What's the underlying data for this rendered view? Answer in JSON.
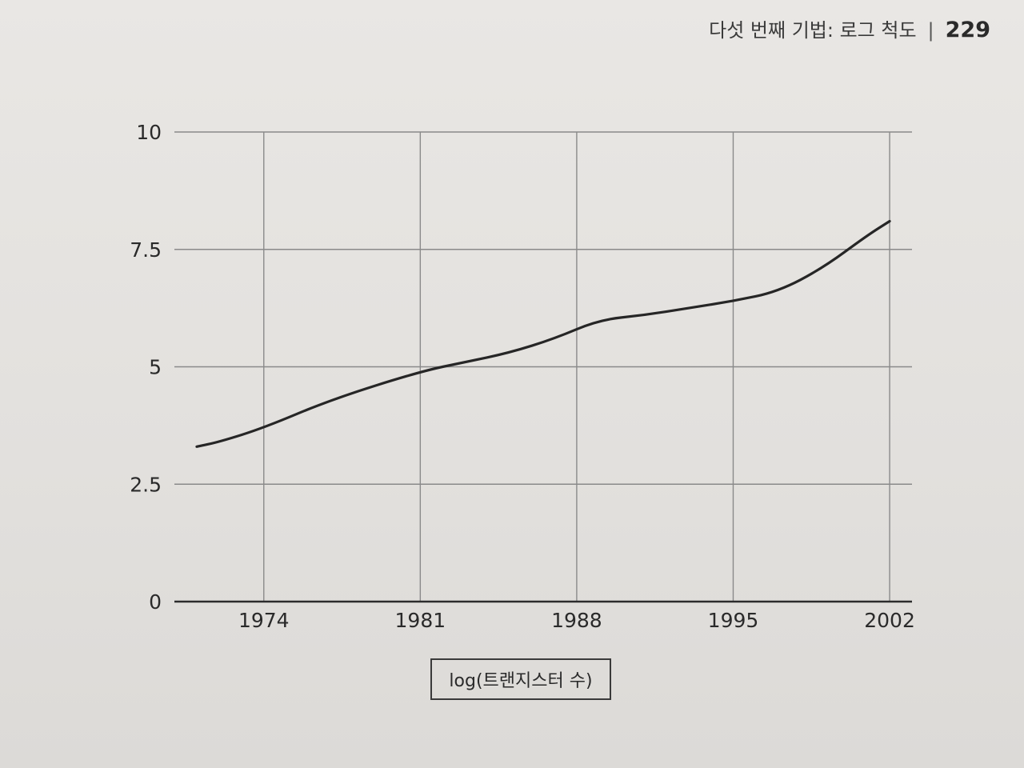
{
  "header": {
    "chapter_title": "다섯 번째 기법: 로그 척도",
    "separator": "|",
    "page_number": "229"
  },
  "chart_data": {
    "type": "line",
    "title": "",
    "xlabel": "",
    "ylabel": "",
    "legend": "log(트랜지스터 수)",
    "legend_placement": "bottom-center",
    "grid": true,
    "xlim": [
      1970,
      2003
    ],
    "ylim": [
      0,
      10
    ],
    "x_ticks": [
      1974,
      1981,
      1988,
      1995,
      2002
    ],
    "x_tick_labels": [
      "1974",
      "1981",
      "1988",
      "1995",
      "2002"
    ],
    "y_ticks": [
      0,
      2.5,
      5,
      7.5,
      10
    ],
    "y_tick_labels": [
      "0",
      "2.5",
      "5",
      "7.5",
      "10"
    ],
    "series": [
      {
        "name": "log(트랜지스터 수)",
        "x": [
          1971,
          1972,
          1974,
          1977,
          1981,
          1983,
          1985,
          1987,
          1989,
          1991,
          1993,
          1995,
          1997,
          1999,
          2001,
          2002
        ],
        "y": [
          3.3,
          3.4,
          3.7,
          4.3,
          4.9,
          5.1,
          5.3,
          5.6,
          6.0,
          6.1,
          6.25,
          6.4,
          6.6,
          7.1,
          7.8,
          8.1
        ]
      }
    ]
  }
}
